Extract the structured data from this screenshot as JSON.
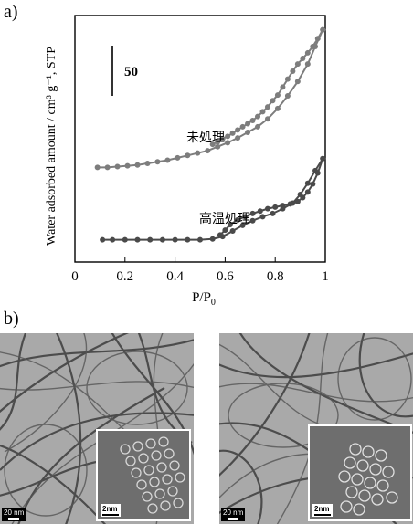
{
  "figure": {
    "panel_a_label": "a)",
    "panel_b_label": "b)"
  },
  "chart_data": {
    "type": "line",
    "xlabel": "P/P",
    "xlabel_sub": "0",
    "ylabel": "Water adsorbed amount / cm³ g⁻¹, STP",
    "xlim": [
      0,
      1
    ],
    "xticks": [
      "0",
      "0.2",
      "0.4",
      "0.6",
      "0.8",
      "1"
    ],
    "scale_bar_label": "50",
    "scale_bar_value": 50,
    "yaxis_ticks": false,
    "grid": false,
    "series": [
      {
        "name": "未処理",
        "color": "#7d7d7d",
        "adsorption": [
          [
            0.09,
            119
          ],
          [
            0.13,
            119
          ],
          [
            0.17,
            120
          ],
          [
            0.21,
            121
          ],
          [
            0.25,
            122
          ],
          [
            0.29,
            124
          ],
          [
            0.33,
            126
          ],
          [
            0.37,
            128
          ],
          [
            0.41,
            131
          ],
          [
            0.45,
            134
          ],
          [
            0.49,
            137
          ],
          [
            0.53,
            140
          ],
          [
            0.57,
            145
          ],
          [
            0.61,
            150
          ],
          [
            0.65,
            156
          ],
          [
            0.69,
            163
          ],
          [
            0.73,
            170
          ],
          [
            0.77,
            180
          ],
          [
            0.81,
            193
          ],
          [
            0.85,
            209
          ],
          [
            0.89,
            227
          ],
          [
            0.93,
            249
          ],
          [
            0.96,
            271
          ],
          [
            0.99,
            292
          ]
        ],
        "desorption": [
          [
            0.99,
            292
          ],
          [
            0.97,
            281
          ],
          [
            0.95,
            271
          ],
          [
            0.93,
            263
          ],
          [
            0.91,
            256
          ],
          [
            0.89,
            249
          ],
          [
            0.87,
            240
          ],
          [
            0.85,
            230
          ],
          [
            0.83,
            220
          ],
          [
            0.81,
            210
          ],
          [
            0.79,
            203
          ],
          [
            0.77,
            195
          ],
          [
            0.75,
            189
          ],
          [
            0.73,
            183
          ],
          [
            0.71,
            178
          ],
          [
            0.69,
            174
          ],
          [
            0.67,
            170
          ],
          [
            0.65,
            166
          ],
          [
            0.63,
            162
          ],
          [
            0.61,
            158
          ],
          [
            0.59,
            155
          ],
          [
            0.57,
            151
          ],
          [
            0.55,
            148
          ]
        ]
      },
      {
        "name": "高温処理",
        "color": "#4a4a4a",
        "adsorption": [
          [
            0.11,
            28
          ],
          [
            0.15,
            28
          ],
          [
            0.2,
            28
          ],
          [
            0.25,
            28
          ],
          [
            0.3,
            28
          ],
          [
            0.35,
            28
          ],
          [
            0.4,
            28
          ],
          [
            0.45,
            28
          ],
          [
            0.5,
            28
          ],
          [
            0.55,
            29
          ],
          [
            0.59,
            32
          ],
          [
            0.63,
            39
          ],
          [
            0.67,
            46
          ],
          [
            0.71,
            52
          ],
          [
            0.75,
            57
          ],
          [
            0.79,
            61
          ],
          [
            0.83,
            67
          ],
          [
            0.87,
            74
          ],
          [
            0.9,
            85
          ],
          [
            0.93,
            99
          ],
          [
            0.96,
            115
          ],
          [
            0.99,
            130
          ]
        ],
        "desorption": [
          [
            0.99,
            130
          ],
          [
            0.97,
            112
          ],
          [
            0.95,
            98
          ],
          [
            0.93,
            88
          ],
          [
            0.91,
            81
          ],
          [
            0.89,
            76
          ],
          [
            0.86,
            73
          ],
          [
            0.83,
            71
          ],
          [
            0.8,
            69
          ],
          [
            0.77,
            67
          ],
          [
            0.74,
            64
          ],
          [
            0.71,
            61
          ],
          [
            0.68,
            57
          ],
          [
            0.65,
            53
          ],
          [
            0.62,
            47
          ],
          [
            0.6,
            40
          ],
          [
            0.58,
            34
          ]
        ]
      }
    ]
  },
  "tem_images": [
    {
      "scale_label": "20 nm",
      "inset_scale_label": "2nm"
    },
    {
      "scale_label": "20 nm",
      "inset_scale_label": "2nm"
    }
  ]
}
